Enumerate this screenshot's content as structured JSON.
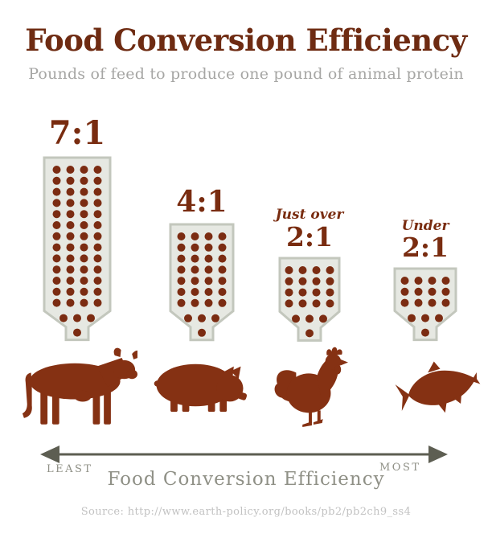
{
  "header": {
    "title": "Food Conversion Efficiency",
    "subtitle": "Pounds of feed to produce one pound of animal protein"
  },
  "chart_data": {
    "type": "pictogram",
    "title": "Food Conversion Efficiency",
    "subtitle": "Pounds of feed to produce one pound of animal protein",
    "description": "Feed hoppers filled with feed-pellet dots above animal silhouettes; hopper size and dot count are proportional to pounds of feed needed per pound of animal protein",
    "categories": [
      "cattle",
      "pig",
      "chicken",
      "fish"
    ],
    "series": [
      {
        "animal": "cattle",
        "qualifier": "",
        "ratio_label": "7:1",
        "feed_to_protein_ratio": 7,
        "dots": 56
      },
      {
        "animal": "pig",
        "qualifier": "",
        "ratio_label": "4:1",
        "feed_to_protein_ratio": 4,
        "dots": 32
      },
      {
        "animal": "chicken",
        "qualifier": "Just over",
        "ratio_label": "2:1",
        "feed_to_protein_ratio": 2.1,
        "dots": 20
      },
      {
        "animal": "fish",
        "qualifier": "Under",
        "ratio_label": "2:1",
        "feed_to_protein_ratio": 1.9,
        "dots": 16
      }
    ],
    "axis": {
      "left_end_label": "LEAST",
      "right_end_label": "MOST",
      "axis_title": "Food Conversion Efficiency",
      "direction": "double-headed horizontal arrow from least efficient (left) to most efficient (right)"
    },
    "grid": false,
    "legend_position": "none"
  },
  "footer": {
    "least_label": "LEAST",
    "most_label": "MOST",
    "axis_title": "Food Conversion Efficiency",
    "source": "Source: http://www.earth-policy.org/books/pb2/pb2ch9_ss4"
  },
  "colors": {
    "title_brown": "#6e2b12",
    "ratio_brown": "#792c10",
    "dot_brown": "#7b2c12",
    "animal_brown": "#853113",
    "funnel_fill": "#e6e8e2",
    "funnel_border": "#c3c7bd",
    "arrow_gray": "#5d5e52",
    "axis_text_gray": "#8f9086",
    "subtitle_gray": "#a6a6a4",
    "source_gray": "#c2c2c2"
  }
}
